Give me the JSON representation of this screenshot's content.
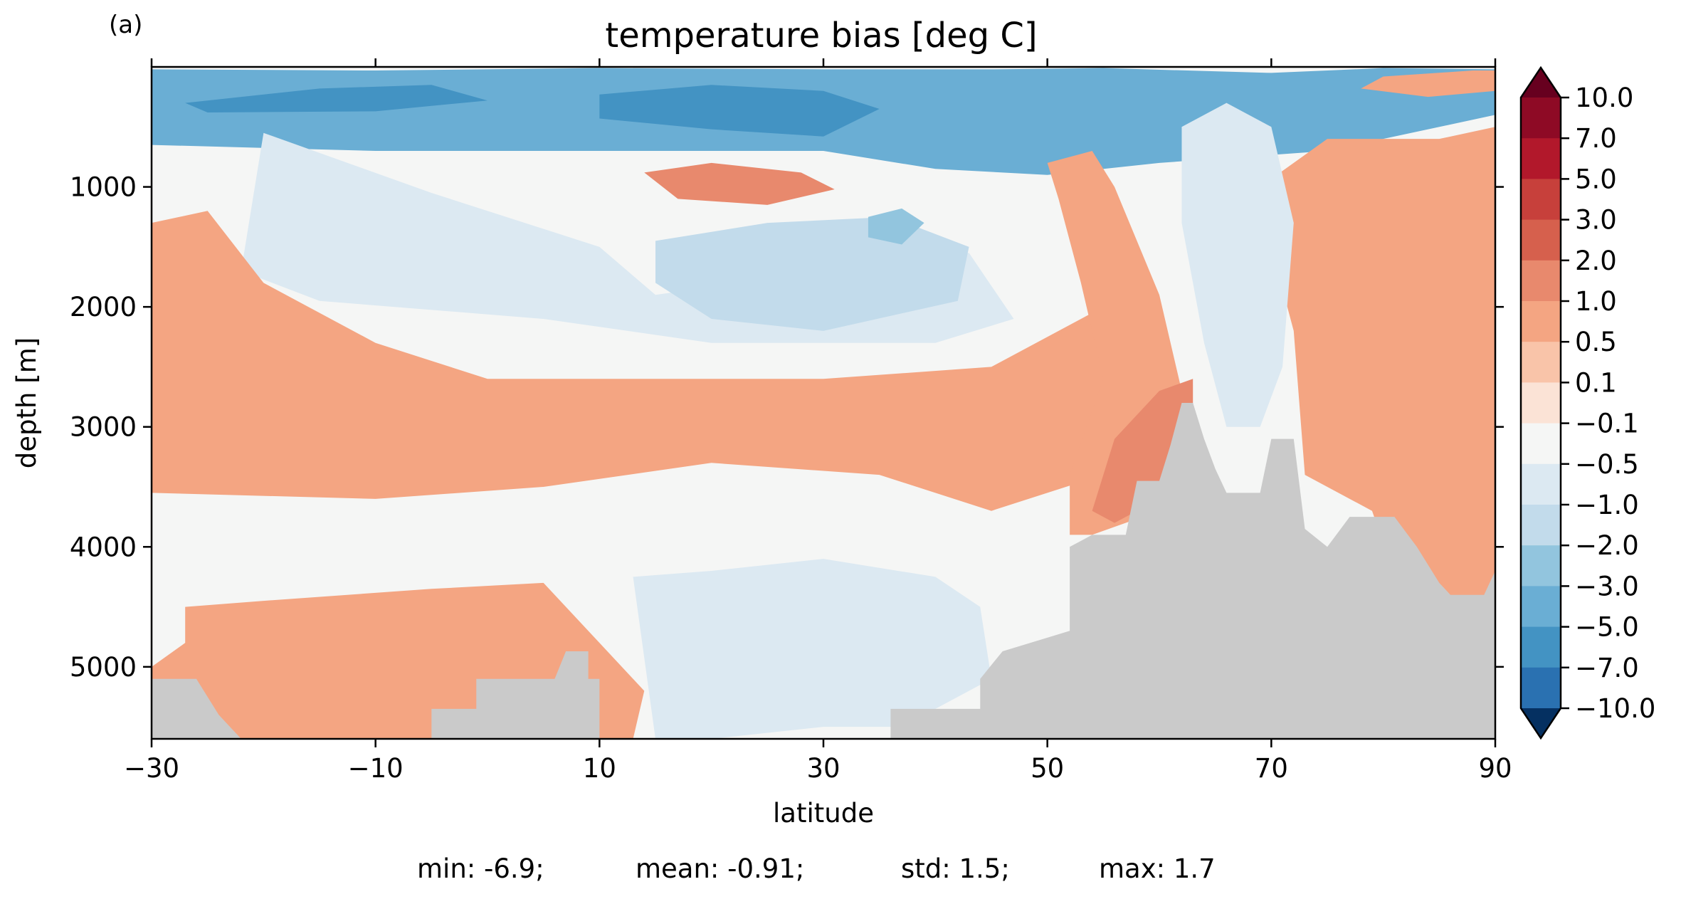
{
  "chart_data": {
    "type": "heatmap",
    "panel_label": "(a)",
    "title": "temperature bias [deg C]",
    "xlabel": "latitude",
    "ylabel": "depth [m]",
    "xlim": [
      -30,
      90
    ],
    "ylim": [
      5600,
      0
    ],
    "x_ticks": [
      -30,
      -10,
      10,
      30,
      50,
      70,
      90
    ],
    "x_tick_labels": [
      "−30",
      "−10",
      "10",
      "30",
      "50",
      "70",
      "90"
    ],
    "y_ticks": [
      1000,
      2000,
      3000,
      4000,
      5000
    ],
    "y_tick_labels": [
      "1000",
      "2000",
      "3000",
      "4000",
      "5000"
    ],
    "colorbar": {
      "extend": "both",
      "levels": [
        "10.0",
        "7.0",
        "5.0",
        "3.0",
        "2.0",
        "1.0",
        "0.5",
        "0.1",
        "−0.1",
        "−0.5",
        "−1.0",
        "−2.0",
        "−3.0",
        "−5.0",
        "−7.0",
        "−10.0"
      ],
      "colors": [
        "#67001f",
        "#8e0a25",
        "#b2182b",
        "#c7403b",
        "#d6604d",
        "#e8896d",
        "#f4a582",
        "#f9c4a9",
        "#fbe3d6",
        "#f5f6f5",
        "#dce9f2",
        "#c2dbeb",
        "#92c5de",
        "#6aaed4",
        "#4393c3",
        "#2a71b1",
        "#2166ac",
        "#053061"
      ]
    },
    "bathymetry_color": "#cacaca",
    "regions": [
      {
        "label": "cold near-surface layer",
        "bin": 13,
        "pts": [
          [
            -30,
            20
          ],
          [
            -10,
            30
          ],
          [
            10,
            10
          ],
          [
            30,
            20
          ],
          [
            45,
            20
          ],
          [
            55,
            10
          ],
          [
            70,
            50
          ],
          [
            80,
            10
          ],
          [
            90,
            20
          ],
          [
            90,
            400
          ],
          [
            75,
            700
          ],
          [
            60,
            800
          ],
          [
            50,
            900
          ],
          [
            40,
            850
          ],
          [
            30,
            700
          ],
          [
            10,
            700
          ],
          [
            -10,
            700
          ],
          [
            -30,
            650
          ]
        ]
      },
      {
        "label": "cold core",
        "bin": 14,
        "pts": [
          [
            -27,
            300
          ],
          [
            -15,
            180
          ],
          [
            -5,
            150
          ],
          [
            0,
            280
          ],
          [
            -10,
            370
          ],
          [
            -25,
            380
          ]
        ]
      },
      {
        "label": "cold core",
        "bin": 14,
        "pts": [
          [
            10,
            230
          ],
          [
            20,
            150
          ],
          [
            30,
            200
          ],
          [
            35,
            350
          ],
          [
            30,
            580
          ],
          [
            20,
            520
          ],
          [
            10,
            430
          ]
        ]
      },
      {
        "label": "warm subsurface patch",
        "bin": 5,
        "pts": [
          [
            14,
            880
          ],
          [
            20,
            800
          ],
          [
            28,
            880
          ],
          [
            31,
            1020
          ],
          [
            25,
            1150
          ],
          [
            17,
            1100
          ]
        ]
      },
      {
        "label": "cool intermediate lens",
        "bin": 10,
        "pts": [
          [
            -20,
            550
          ],
          [
            -5,
            1050
          ],
          [
            10,
            1500
          ],
          [
            15,
            1900
          ],
          [
            30,
            1700
          ],
          [
            43,
            1550
          ],
          [
            47,
            2100
          ],
          [
            40,
            2300
          ],
          [
            20,
            2300
          ],
          [
            5,
            2100
          ],
          [
            -15,
            1950
          ],
          [
            -22,
            1700
          ]
        ]
      },
      {
        "label": "cool intermediate core",
        "bin": 11,
        "pts": [
          [
            15,
            1450
          ],
          [
            25,
            1300
          ],
          [
            36,
            1250
          ],
          [
            43,
            1500
          ],
          [
            42,
            1950
          ],
          [
            30,
            2200
          ],
          [
            20,
            2100
          ],
          [
            15,
            1800
          ]
        ]
      },
      {
        "label": "cold pocket",
        "bin": 12,
        "pts": [
          [
            34,
            1250
          ],
          [
            37,
            1180
          ],
          [
            39,
            1300
          ],
          [
            37,
            1480
          ],
          [
            34,
            1420
          ]
        ]
      },
      {
        "label": "warm band",
        "bin": 6,
        "pts": [
          [
            -30,
            1300
          ],
          [
            -25,
            1200
          ],
          [
            -20,
            1800
          ],
          [
            -10,
            2300
          ],
          [
            0,
            2600
          ],
          [
            10,
            2600
          ],
          [
            30,
            2600
          ],
          [
            45,
            2500
          ],
          [
            55,
            2000
          ],
          [
            60,
            2600
          ],
          [
            61,
            3000
          ],
          [
            55,
            3400
          ],
          [
            45,
            3700
          ],
          [
            35,
            3400
          ],
          [
            20,
            3300
          ],
          [
            5,
            3500
          ],
          [
            -10,
            3600
          ],
          [
            -30,
            3550
          ]
        ]
      },
      {
        "label": "deep warm layer",
        "bin": 6,
        "pts": [
          [
            -27,
            4500
          ],
          [
            -20,
            4450
          ],
          [
            -5,
            4350
          ],
          [
            5,
            4300
          ],
          [
            10,
            4800
          ],
          [
            14,
            5200
          ],
          [
            13,
            5600
          ],
          [
            -30,
            5600
          ],
          [
            -30,
            5000
          ],
          [
            -27,
            4800
          ]
        ]
      },
      {
        "label": "deep cool layer",
        "bin": 10,
        "pts": [
          [
            13,
            4250
          ],
          [
            20,
            4200
          ],
          [
            30,
            4100
          ],
          [
            40,
            4250
          ],
          [
            44,
            4500
          ],
          [
            45,
            5100
          ],
          [
            37,
            5500
          ],
          [
            30,
            5500
          ],
          [
            20,
            5600
          ],
          [
            15,
            5600
          ]
        ]
      },
      {
        "label": "warm north",
        "bin": 6,
        "pts": [
          [
            69,
            1000
          ],
          [
            75,
            600
          ],
          [
            85,
            600
          ],
          [
            90,
            500
          ],
          [
            90,
            4500
          ],
          [
            82,
            4500
          ],
          [
            79,
            3700
          ],
          [
            73,
            3400
          ],
          [
            72,
            2200
          ],
          [
            70,
            1500
          ]
        ]
      },
      {
        "label": "warm slope",
        "bin": 6,
        "pts": [
          [
            50,
            800
          ],
          [
            54,
            700
          ],
          [
            56,
            1000
          ],
          [
            60,
            1900
          ],
          [
            62,
            2700
          ],
          [
            63,
            3100
          ],
          [
            60,
            3700
          ],
          [
            54,
            3900
          ],
          [
            52,
            3900
          ],
          [
            52,
            3400
          ],
          [
            55,
            2600
          ],
          [
            53,
            1800
          ],
          [
            51,
            1100
          ]
        ]
      },
      {
        "label": "warm slope core",
        "bin": 5,
        "pts": [
          [
            56,
            3100
          ],
          [
            60,
            2700
          ],
          [
            63,
            2600
          ],
          [
            63,
            3100
          ],
          [
            60,
            3600
          ],
          [
            56,
            3800
          ],
          [
            54,
            3700
          ]
        ]
      },
      {
        "label": "arctic cool column",
        "bin": 10,
        "pts": [
          [
            62,
            500
          ],
          [
            66,
            300
          ],
          [
            70,
            500
          ],
          [
            72,
            1300
          ],
          [
            71,
            2500
          ],
          [
            69,
            3000
          ],
          [
            66,
            3000
          ],
          [
            64,
            2300
          ],
          [
            62,
            1300
          ]
        ]
      },
      {
        "label": "warm surface patch",
        "bin": 6,
        "pts": [
          [
            80,
            80
          ],
          [
            88,
            30
          ],
          [
            90,
            30
          ],
          [
            90,
            200
          ],
          [
            84,
            250
          ],
          [
            78,
            180
          ]
        ]
      }
    ],
    "bathymetry": [
      [
        -30,
        5600
      ],
      [
        -30,
        5100
      ],
      [
        -26,
        5100
      ],
      [
        -24,
        5400
      ],
      [
        -22,
        5600
      ],
      [
        -5,
        5600
      ],
      [
        -5,
        5350
      ],
      [
        -1,
        5350
      ],
      [
        -1,
        5100
      ],
      [
        3,
        5100
      ],
      [
        6,
        5100
      ],
      [
        7,
        4870
      ],
      [
        9,
        4870
      ],
      [
        9,
        5100
      ],
      [
        10,
        5100
      ],
      [
        10,
        5600
      ],
      [
        36,
        5600
      ],
      [
        36,
        5350
      ],
      [
        44,
        5350
      ],
      [
        44,
        5100
      ],
      [
        46,
        4870
      ],
      [
        52,
        4700
      ],
      [
        52,
        4000
      ],
      [
        54,
        3900
      ],
      [
        57,
        3900
      ],
      [
        58,
        3450
      ],
      [
        60,
        3450
      ],
      [
        61,
        3150
      ],
      [
        62,
        2800
      ],
      [
        63,
        2800
      ],
      [
        64,
        3100
      ],
      [
        65,
        3350
      ],
      [
        66,
        3550
      ],
      [
        68,
        3550
      ],
      [
        69,
        3550
      ],
      [
        70,
        3100
      ],
      [
        72,
        3100
      ],
      [
        73,
        3850
      ],
      [
        75,
        4000
      ],
      [
        77,
        3750
      ],
      [
        81,
        3750
      ],
      [
        83,
        4000
      ],
      [
        85,
        4300
      ],
      [
        86,
        4400
      ],
      [
        89,
        4400
      ],
      [
        90,
        4200
      ],
      [
        90,
        5600
      ]
    ],
    "stats": {
      "min": "min: -6.9;",
      "mean": "mean: -0.91;",
      "std": "std: 1.5;",
      "max": "max: 1.7"
    }
  }
}
